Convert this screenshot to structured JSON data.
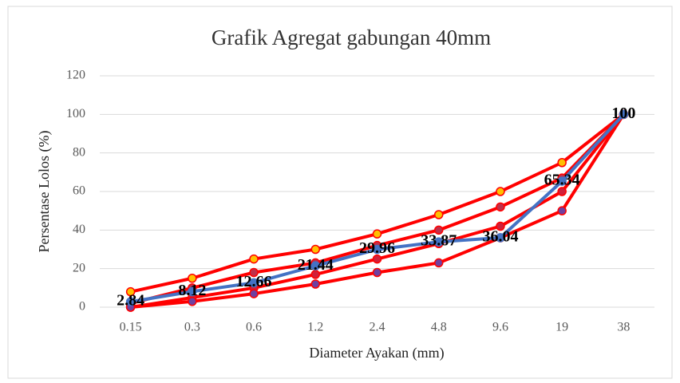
{
  "chart_data": {
    "type": "line",
    "title": "Grafik Agregat gabungan 40mm",
    "xlabel": "Diameter Ayakan (mm)",
    "ylabel": "Persentase Lolos (%)",
    "categories": [
      "0.15",
      "0.3",
      "0.6",
      "1.2",
      "2.4",
      "4.8",
      "9.6",
      "19",
      "38"
    ],
    "ylim": [
      0,
      120
    ],
    "yticks": [
      0,
      20,
      40,
      60,
      80,
      100,
      120
    ],
    "grid": true,
    "series": [
      {
        "color": "#ff0000",
        "marker_color": "#ffc000",
        "values": [
          8,
          15,
          25,
          30,
          38,
          48,
          60,
          75,
          100
        ]
      },
      {
        "color": "#ff0000",
        "marker_color": "#c0304a",
        "values": [
          2,
          10,
          18,
          23,
          32,
          40,
          52,
          67,
          100
        ]
      },
      {
        "color": "#ff0000",
        "marker_color": "#d0203a",
        "values": [
          0,
          5,
          10,
          17,
          25,
          33,
          42,
          60,
          100
        ]
      },
      {
        "color": "#ff0000",
        "marker_color": "#7040a0",
        "values": [
          0,
          3,
          7,
          12,
          18,
          23,
          36,
          50,
          100
        ]
      },
      {
        "color": "#4472c4",
        "marker_color": "#4472c4",
        "labels": true,
        "values": [
          2.84,
          8.12,
          12.66,
          21.44,
          29.96,
          33.87,
          36.04,
          65.34,
          100
        ]
      }
    ]
  }
}
